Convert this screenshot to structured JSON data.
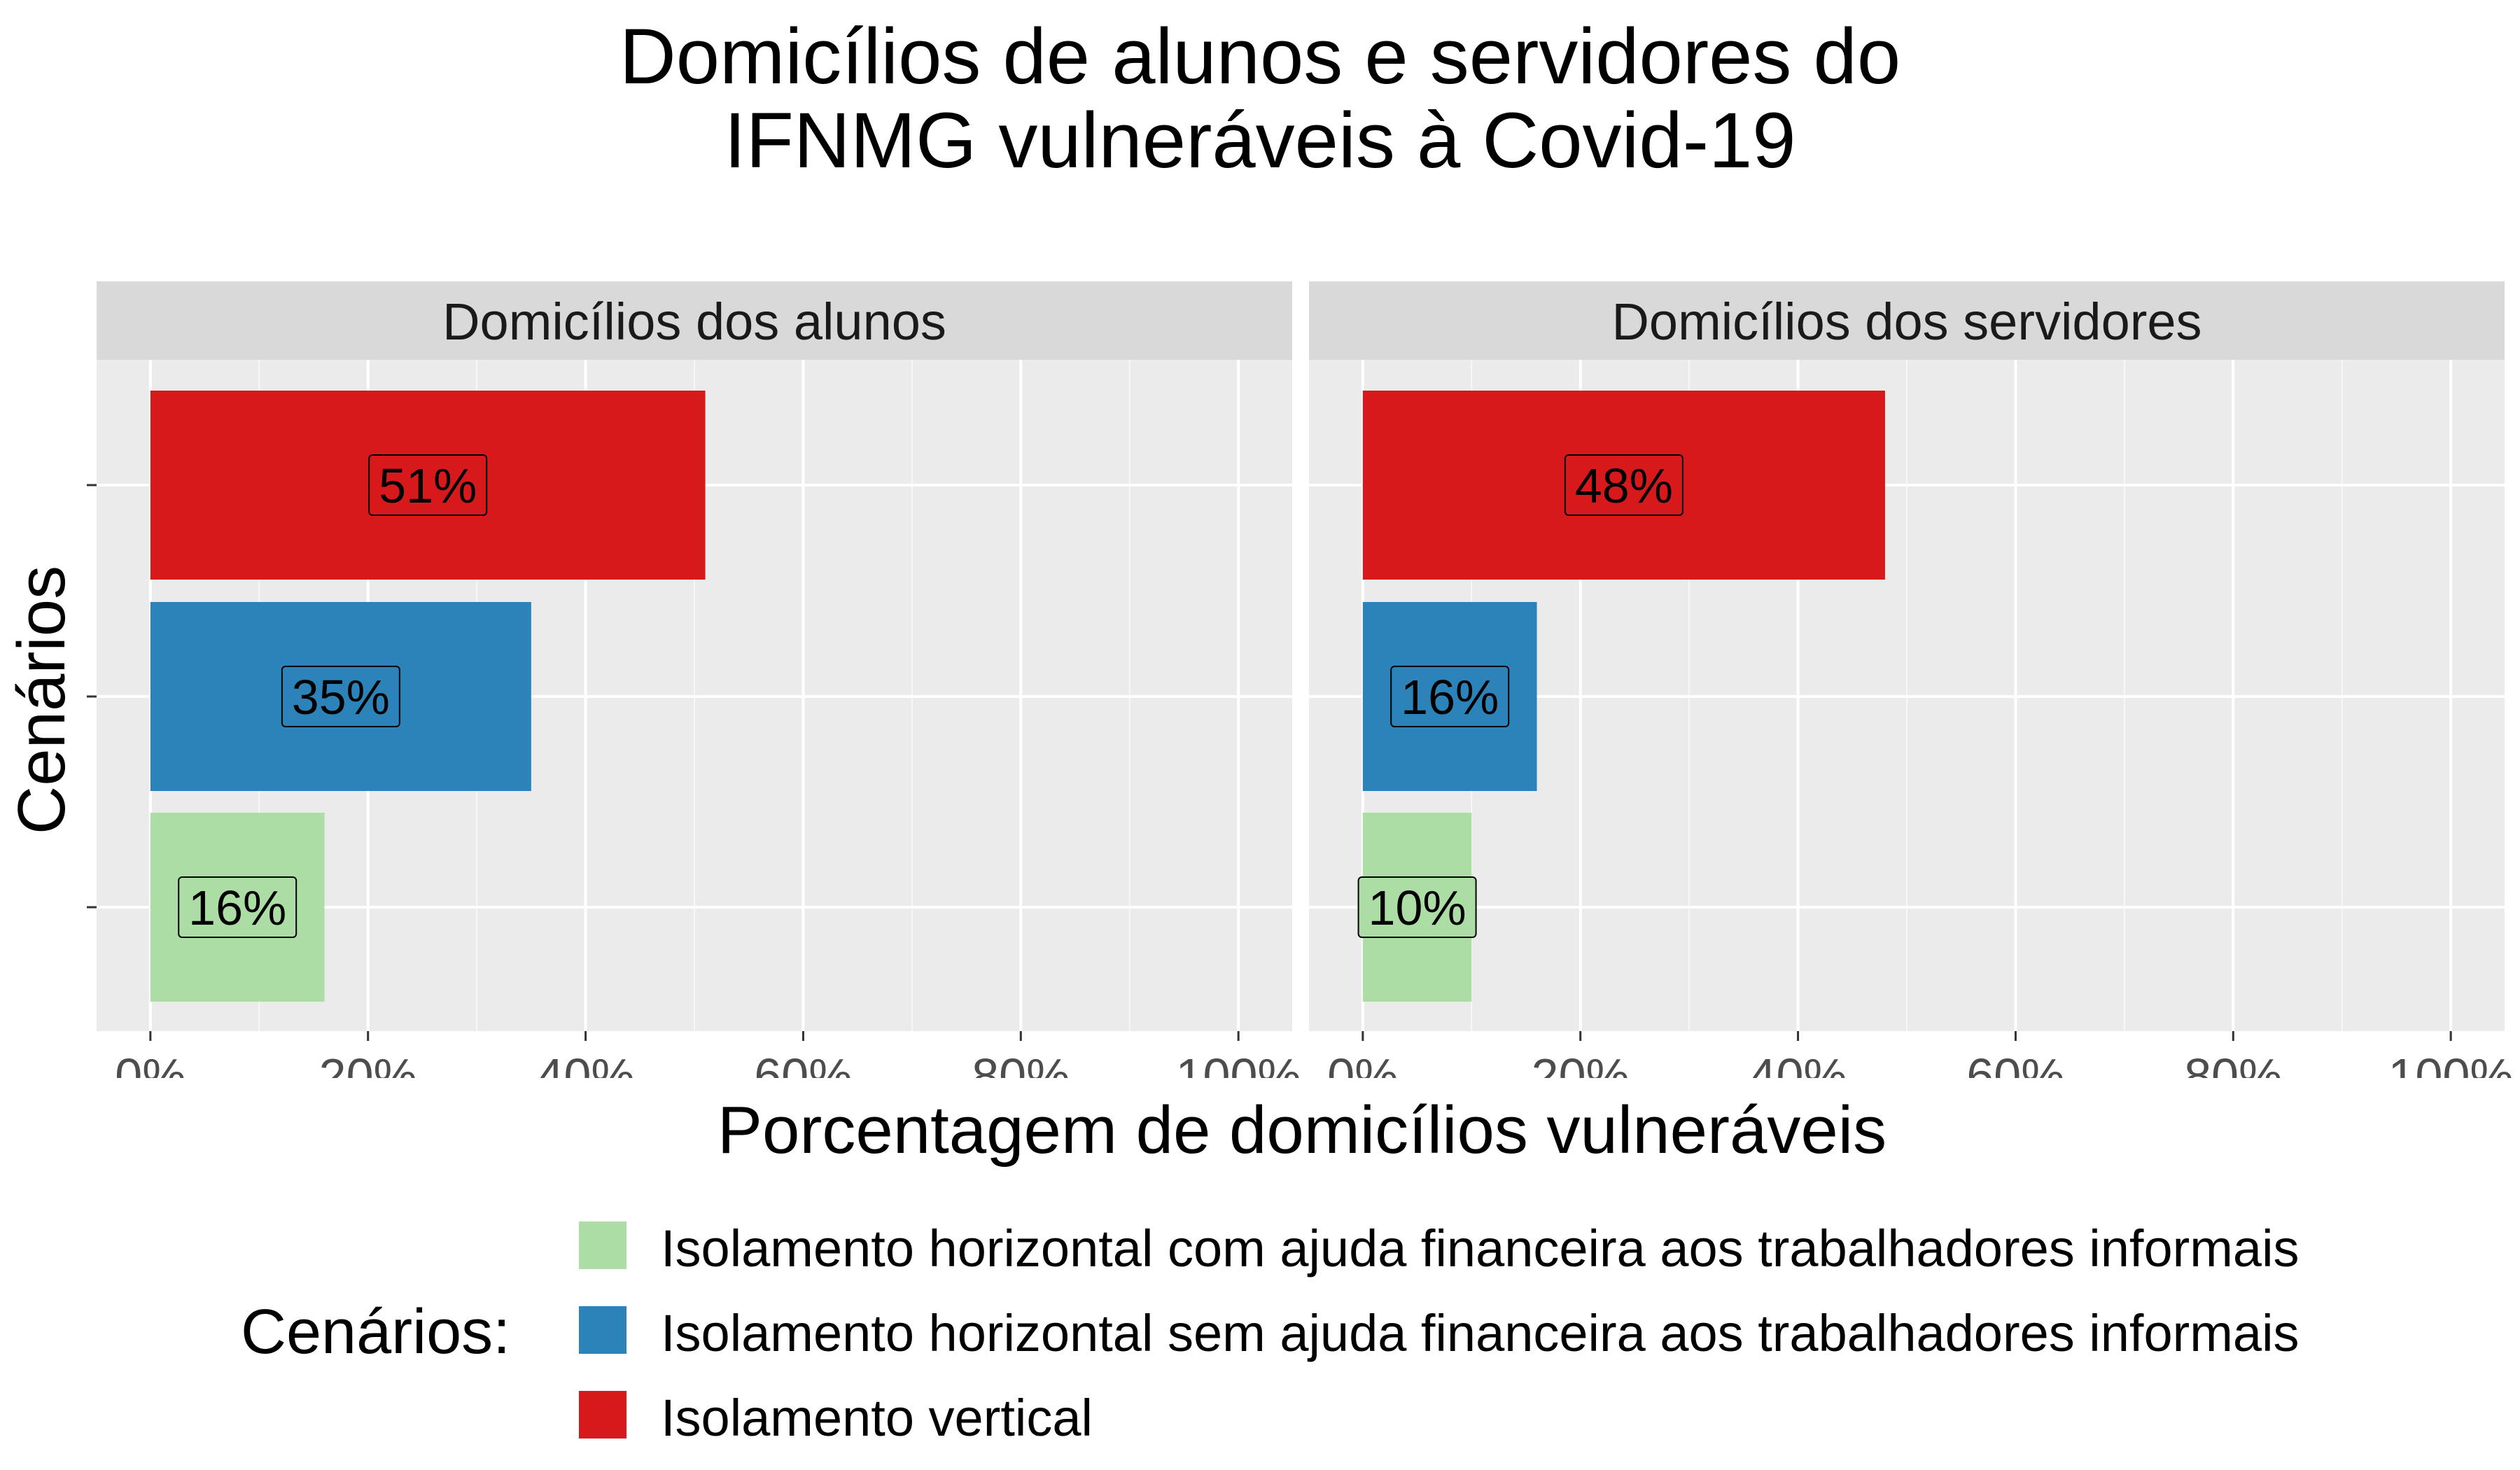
{
  "chart_data": {
    "type": "bar",
    "orientation": "horizontal",
    "title_lines": [
      "Domicílios de alunos e servidores do",
      "IFNMG vulneráveis à Covid-19"
    ],
    "xlabel": "Porcentagem de domicílios vulneráveis",
    "ylabel": "Cenários",
    "xlim": [
      0,
      100
    ],
    "x_ticks": [
      "0%",
      "20%",
      "40%",
      "60%",
      "80%",
      "100%"
    ],
    "x_tick_values": [
      0,
      20,
      40,
      60,
      80,
      100
    ],
    "grid": true,
    "categories": [
      "Isolamento vertical",
      "Isolamento horizontal sem ajuda financeira aos trabalhadores informais",
      "Isolamento horizontal com ajuda financeira aos trabalhadores informais"
    ],
    "colors": [
      "#d7191c",
      "#2b83ba",
      "#abdda4"
    ],
    "panels": [
      {
        "name": "Domicílios dos alunos",
        "values": [
          51,
          35,
          16
        ],
        "labels": [
          "51%",
          "35%",
          "16%"
        ]
      },
      {
        "name": "Domicílios dos servidores",
        "values": [
          48,
          16,
          10
        ],
        "labels": [
          "48%",
          "16%",
          "10%"
        ]
      }
    ],
    "legend": {
      "title": "Cenários:",
      "position": "bottom",
      "items": [
        {
          "label": "Isolamento horizontal com ajuda financeira aos trabalhadores informais",
          "color": "#abdda4"
        },
        {
          "label": "Isolamento horizontal sem ajuda financeira aos trabalhadores informais",
          "color": "#2b83ba"
        },
        {
          "label": "Isolamento vertical",
          "color": "#d7191c"
        }
      ]
    }
  }
}
